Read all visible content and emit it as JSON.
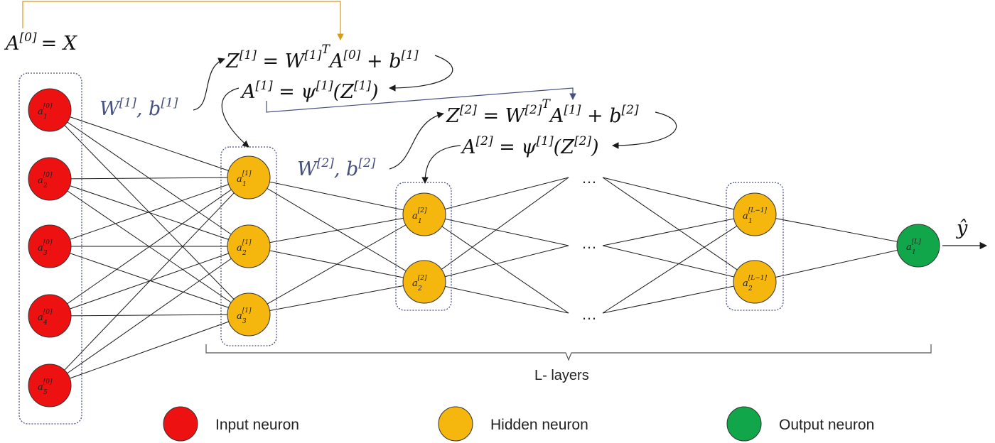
{
  "colors": {
    "input": "#ee1111",
    "hidden": "#f5b70e",
    "output": "#12a64a",
    "accent_blue": "#45507f",
    "accent_orange": "#d99a14"
  },
  "equations": {
    "a0": {
      "lhs": "A",
      "sup": "[0]",
      "rest": "= X"
    },
    "w1": {
      "w": "W",
      "w_sup": "[1]",
      "comma": ", ",
      "b": "b",
      "b_sup": "[1]"
    },
    "w2": {
      "w": "W",
      "w_sup": "[2]",
      "comma": ", ",
      "b": "b",
      "b_sup": "[2]"
    },
    "z1": {
      "z": "Z",
      "z_sup": "[1]",
      "eq": " = W",
      "w_sup": "[1]",
      "t": "T",
      "a": "A",
      "a_sup": "[0]",
      "plus": " + b",
      "b_sup": "[1]"
    },
    "act1": {
      "a": "A",
      "a_sup": "[1]",
      "eq": " = ψ",
      "psi_sup": "[1]",
      "open": "(Z",
      "z_sup": "[1]",
      "close": ")"
    },
    "z2": {
      "z": "Z",
      "z_sup": "[2]",
      "eq": " = W",
      "w_sup": "[2]",
      "t": "T",
      "a": "A",
      "a_sup": "[1]",
      "plus": " + b",
      "b_sup": "[2]"
    },
    "act2": {
      "a": "A",
      "a_sup": "[2]",
      "eq": " = ψ",
      "psi_sup": "[1]",
      "open": "(Z",
      "z_sup": "[2]",
      "close": ")"
    }
  },
  "neurons": {
    "input": [
      {
        "base": "a",
        "sup": "[0]",
        "sub": "1"
      },
      {
        "base": "a",
        "sup": "[0]",
        "sub": "2"
      },
      {
        "base": "a",
        "sup": "[0]",
        "sub": "3"
      },
      {
        "base": "a",
        "sup": "[0]",
        "sub": "4"
      },
      {
        "base": "a",
        "sup": "[0]",
        "sub": "5"
      }
    ],
    "hidden1": [
      {
        "base": "a",
        "sup": "[1]",
        "sub": "1"
      },
      {
        "base": "a",
        "sup": "[1]",
        "sub": "2"
      },
      {
        "base": "a",
        "sup": "[1]",
        "sub": "3"
      }
    ],
    "hidden2": [
      {
        "base": "a",
        "sup": "[2]",
        "sub": "1"
      },
      {
        "base": "a",
        "sup": "[2]",
        "sub": "2"
      }
    ],
    "hiddenL": [
      {
        "base": "a",
        "sup": "[L−1]",
        "sub": "1"
      },
      {
        "base": "a",
        "sup": "[L−1]",
        "sub": "2"
      }
    ],
    "output": [
      {
        "base": "a",
        "sup": "[L]",
        "sub": "1"
      }
    ]
  },
  "ellipsis": "…",
  "output_label": "ŷ",
  "layers_label": "L- layers",
  "legend": [
    {
      "label": "Input neuron",
      "color": "#ee1111"
    },
    {
      "label": "Hidden neuron",
      "color": "#f5b70e"
    },
    {
      "label": "Output neuron",
      "color": "#12a64a"
    }
  ]
}
